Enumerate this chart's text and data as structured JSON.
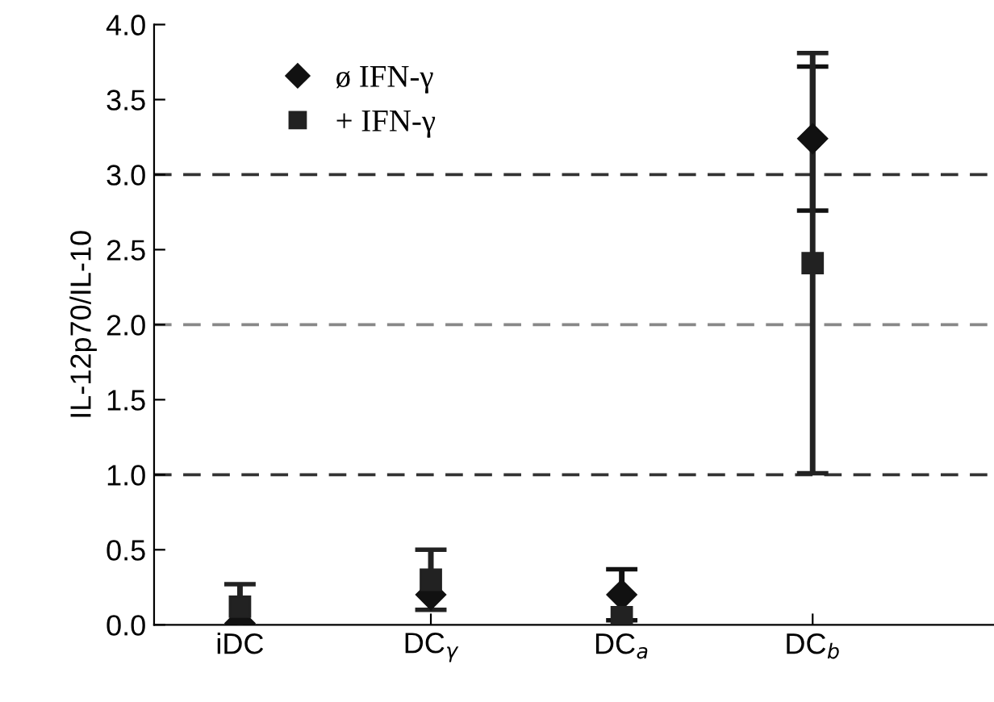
{
  "chart_data": {
    "type": "scatter",
    "ylabel": "IL-12p70/IL-10",
    "categories": [
      "iDC",
      "DC$_{γ}$",
      "DC$_{a}$",
      "DC$_{b}$"
    ],
    "series": [
      {
        "name": "ø IFN-γ",
        "color": "#111111",
        "marker": "diamond",
        "values": [
          0.01,
          0.2,
          0.2,
          3.24
        ],
        "errors": [
          null,
          null,
          0.17,
          0.48
        ]
      },
      {
        "name": "+ IFN-γ",
        "color": "#222222",
        "marker": "square",
        "values": [
          0.12,
          0.3,
          0.05,
          2.41
        ],
        "errors": [
          0.15,
          0.2,
          null,
          1.4
        ]
      }
    ],
    "ylim": [
      0,
      4
    ],
    "yticks": [
      {
        "value": 0,
        "label": "0.0"
      },
      {
        "value": 0.5,
        "label": "0.5"
      },
      {
        "value": 1,
        "label": "1.0"
      },
      {
        "value": 1.5,
        "label": "1.5"
      },
      {
        "value": 2,
        "label": "2.0"
      },
      {
        "value": 2.5,
        "label": "2.5"
      },
      {
        "value": 3,
        "label": "3.0"
      },
      {
        "value": 3.5,
        "label": "3.5"
      },
      {
        "value": 4,
        "label": "4.0"
      }
    ],
    "ref_lines": [
      {
        "axis": "y",
        "value": 1,
        "color": "#333333",
        "line_style": "dashed"
      },
      {
        "axis": "y",
        "value": 2,
        "color": "#888888",
        "line_style": "dashed"
      },
      {
        "axis": "y",
        "value": 3,
        "color": "#333333",
        "line_style": "dashed"
      }
    ],
    "legend": "top left"
  }
}
